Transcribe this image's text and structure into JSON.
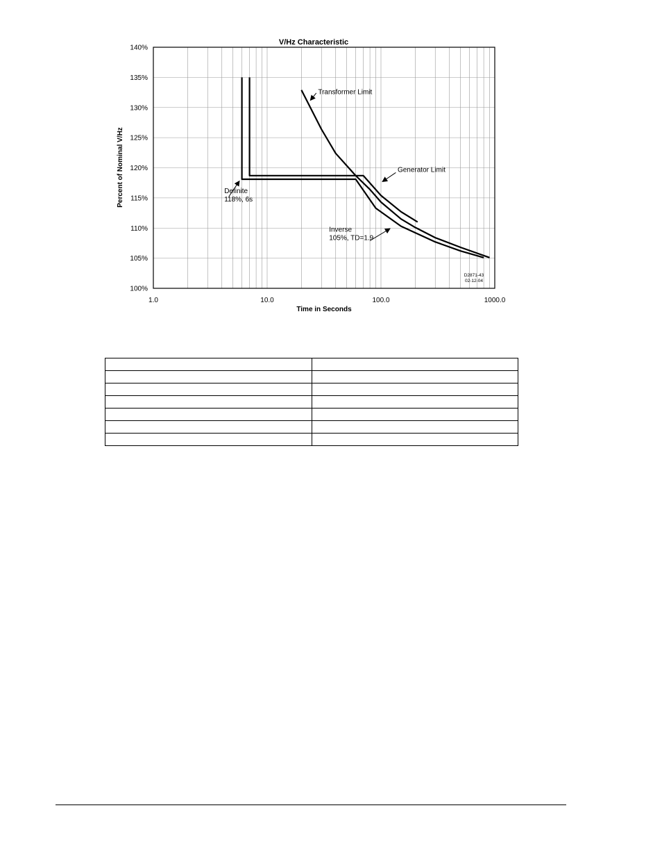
{
  "chart_data": {
    "type": "line",
    "title": "V/Hz Characteristic",
    "xlabel": "Time in Seconds",
    "ylabel": "Percent of Nominal V/Hz",
    "x_scale": "log",
    "xlim": [
      1,
      1000
    ],
    "ylim": [
      100,
      140
    ],
    "x_ticks": [
      "1.0",
      "10.0",
      "100.0",
      "1000.0"
    ],
    "y_ticks": [
      "100%",
      "105%",
      "110%",
      "115%",
      "120%",
      "125%",
      "130%",
      "135%",
      "140%"
    ],
    "grid": true,
    "series": [
      {
        "name": "",
        "values_xy": [
          [
            6,
            135
          ],
          [
            6,
            118.1
          ],
          [
            60,
            118.1
          ],
          [
            90,
            113.3
          ],
          [
            150,
            110.3
          ],
          [
            300,
            107.7
          ],
          [
            500,
            106.2
          ],
          [
            800,
            105.1
          ]
        ]
      },
      {
        "name": "",
        "values_xy": [
          [
            7,
            135
          ],
          [
            7,
            118.7
          ],
          [
            70,
            118.7
          ],
          [
            100,
            115.4
          ],
          [
            150,
            112.7
          ],
          [
            210,
            111.0
          ]
        ]
      },
      {
        "name": "",
        "values_xy": [
          [
            20,
            132.9
          ],
          [
            30,
            126.4
          ],
          [
            40,
            122.4
          ],
          [
            60,
            118.7
          ],
          [
            80,
            116.4
          ],
          [
            100,
            114.3
          ],
          [
            150,
            111.5
          ],
          [
            200,
            110.1
          ],
          [
            300,
            108.4
          ],
          [
            500,
            106.8
          ],
          [
            900,
            105.1
          ]
        ]
      }
    ],
    "annotations": [
      {
        "id": "transformer",
        "text": "Transformer Limit",
        "at": [
          28,
          132.2
        ],
        "arrow_from": [
          27,
          132.4
        ],
        "arrow_to": [
          24,
          131.2
        ]
      },
      {
        "id": "generator",
        "text": "Generator Limit",
        "at": [
          140,
          119.3
        ],
        "arrow_from": [
          135,
          119.2
        ],
        "arrow_to": [
          103,
          117.7
        ]
      },
      {
        "id": "definite",
        "lines": [
          "Definite",
          "118%, 6s"
        ],
        "at": [
          4.2,
          115.8
        ],
        "arrow_from": [
          4.6,
          115.2
        ],
        "arrow_to": [
          5.7,
          117.8
        ]
      },
      {
        "id": "inverse",
        "lines": [
          "Inverse",
          "105%, TD=1.9"
        ],
        "at": [
          35,
          109.4
        ],
        "arrow_from": [
          80,
          107.9
        ],
        "arrow_to": [
          120,
          109.9
        ]
      }
    ],
    "figure_id": [
      "D2871-43",
      "02-12-04"
    ]
  },
  "table": {
    "rows": [
      [
        "",
        ""
      ],
      [
        "",
        ""
      ],
      [
        "",
        ""
      ],
      [
        "",
        ""
      ],
      [
        "",
        ""
      ],
      [
        "",
        ""
      ],
      [
        "",
        ""
      ]
    ]
  }
}
